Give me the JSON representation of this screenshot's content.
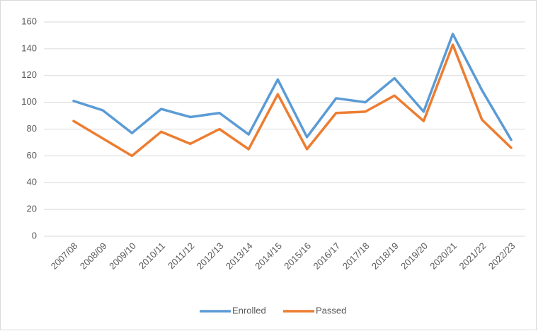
{
  "chart_data": {
    "type": "line",
    "categories": [
      "2007/08",
      "2008/09",
      "2009/10",
      "2010/11",
      "2011/12",
      "2012/13",
      "2013/14",
      "2014/15",
      "2015/16",
      "2016/17",
      "2017/18",
      "2018/19",
      "2019/20",
      "2020/21",
      "2021/22",
      "2022/23"
    ],
    "series": [
      {
        "name": "Enrolled",
        "color": "#5b9bd5",
        "values": [
          101,
          94,
          77,
          95,
          89,
          92,
          76,
          117,
          74,
          103,
          100,
          118,
          93,
          151,
          109,
          72
        ]
      },
      {
        "name": "Passed",
        "color": "#ed7d31",
        "values": [
          86,
          73,
          60,
          78,
          69,
          80,
          65,
          106,
          65,
          92,
          93,
          105,
          86,
          143,
          87,
          66
        ]
      }
    ],
    "ylim": [
      0,
      160
    ],
    "yticks": [
      0,
      20,
      40,
      60,
      80,
      100,
      120,
      140,
      160
    ],
    "grid": true,
    "legend": "bottom"
  }
}
